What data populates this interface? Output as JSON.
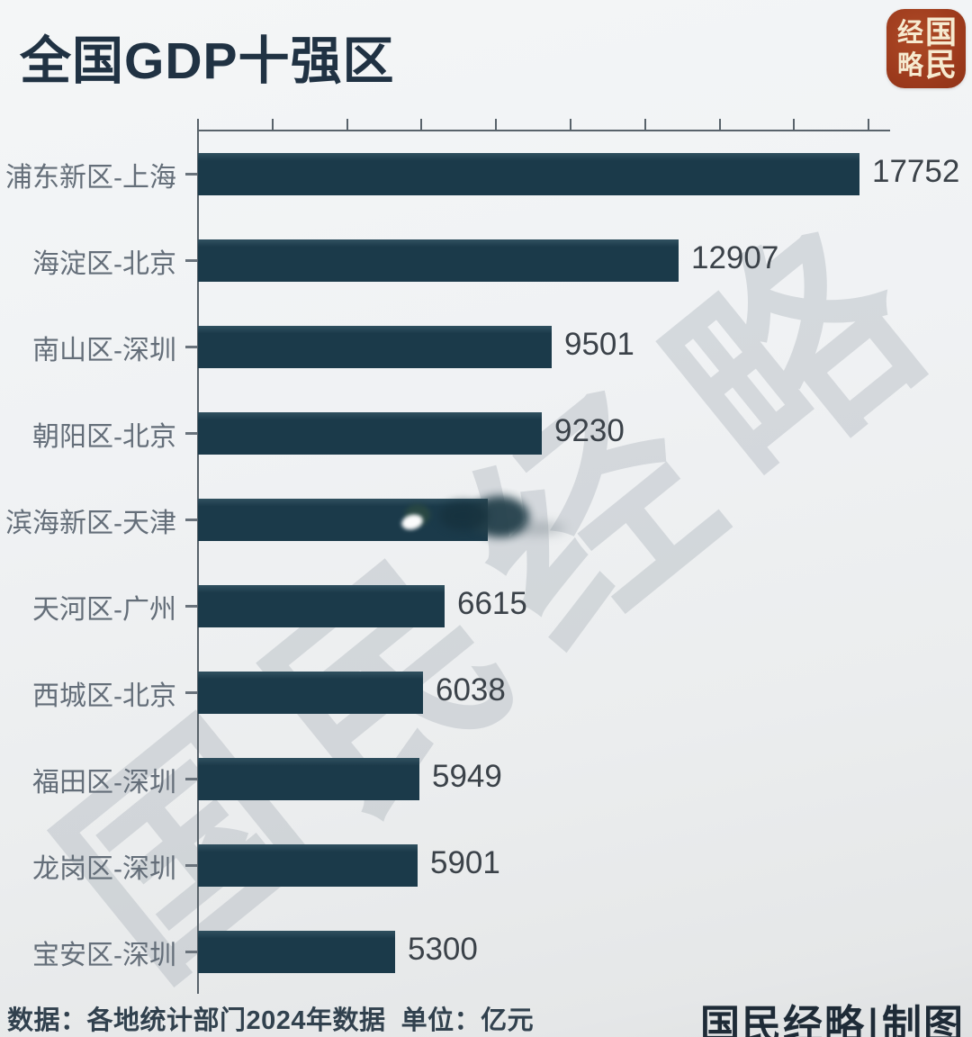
{
  "title": "全国GDP十强区",
  "logo": {
    "chars": [
      "经",
      "国",
      "略",
      "民"
    ],
    "bg_color": "#9e3b1d",
    "text_color": "#f6ead0"
  },
  "watermark": {
    "text": "国民经略",
    "color": "#a3acb4"
  },
  "chart_data": {
    "type": "bar",
    "orientation": "horizontal",
    "title": "全国GDP十强区",
    "xlabel": "",
    "ylabel": "",
    "unit": "亿元",
    "xlim": [
      0,
      18600
    ],
    "xticks": [
      0,
      2000,
      4000,
      6000,
      8000,
      10000,
      12000,
      14000,
      16000,
      18000
    ],
    "grid": false,
    "bar_color": "#1b3a4a",
    "label_color": "#646e79",
    "value_color": "#3b4249",
    "entries": [
      {
        "label": "浦东新区-上海",
        "value": 17752,
        "display": "17752"
      },
      {
        "label": "海淀区-北京",
        "value": 12907,
        "display": "12907"
      },
      {
        "label": "南山区-深圳",
        "value": 9501,
        "display": "9501"
      },
      {
        "label": "朝阳区-北京",
        "value": 9230,
        "display": "9230"
      },
      {
        "label": "滨海新区-天津",
        "value": null,
        "display": "",
        "value_obscured": true,
        "bar_length_value_estimate": 7770
      },
      {
        "label": "天河区-广州",
        "value": 6615,
        "display": "6615"
      },
      {
        "label": "西城区-北京",
        "value": 6038,
        "display": "6038"
      },
      {
        "label": "福田区-深圳",
        "value": 5949,
        "display": "5949"
      },
      {
        "label": "龙岗区-深圳",
        "value": 5901,
        "display": "5901"
      },
      {
        "label": "宝安区-深圳",
        "value": 5300,
        "display": "5300"
      }
    ]
  },
  "footer": {
    "source": "数据：各地统计部门2024年数据  单位：亿元",
    "credit": "国民经略|制图"
  }
}
